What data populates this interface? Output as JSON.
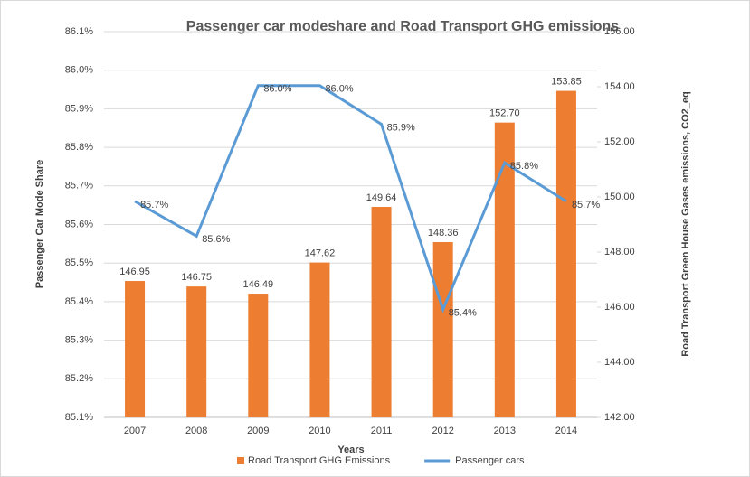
{
  "chart_data": {
    "type": "bar_line",
    "title": "Passenger car modeshare and Road Transport GHG emissions",
    "xlabel": "Years",
    "ylabel": "Passenger Car  Mode Share",
    "y2label": "Road Transport Green House Gases  emissions, CO2_eq",
    "categories": [
      "2007",
      "2008",
      "2009",
      "2010",
      "2011",
      "2012",
      "2013",
      "2014"
    ],
    "series": [
      {
        "name": "Road Transport GHG Emissions",
        "color": "#ed7d31",
        "type": "bar",
        "axis": "y2",
        "values": [
          146.95,
          146.75,
          146.49,
          147.62,
          149.64,
          148.36,
          152.7,
          153.85
        ],
        "value_labels": [
          "146.95",
          "146.75",
          "146.49",
          "147.62",
          "149.64",
          "148.36",
          "152.70",
          "153.85"
        ]
      },
      {
        "name": "Passenger cars",
        "color": "#5b9bd5",
        "type": "line",
        "axis": "y",
        "values": [
          85.66,
          85.57,
          85.96,
          85.96,
          85.86,
          85.38,
          85.76,
          85.66
        ],
        "value_labels": [
          "85.7%",
          "85.6%",
          "86.0%",
          "86.0%",
          "85.9%",
          "85.4%",
          "85.8%",
          "85.7%"
        ]
      }
    ],
    "ylim": [
      85.1,
      86.1
    ],
    "yticks": [
      {
        "value": 85.1,
        "label": "85.1%"
      },
      {
        "value": 85.2,
        "label": "85.2%"
      },
      {
        "value": 85.3,
        "label": "85.3%"
      },
      {
        "value": 85.4,
        "label": "85.4%"
      },
      {
        "value": 85.5,
        "label": "85.5%"
      },
      {
        "value": 85.6,
        "label": "85.6%"
      },
      {
        "value": 85.7,
        "label": "85.7%"
      },
      {
        "value": 85.8,
        "label": "85.8%"
      },
      {
        "value": 85.9,
        "label": "85.9%"
      },
      {
        "value": 86.0,
        "label": "86.0%"
      },
      {
        "value": 86.1,
        "label": "86.1%"
      }
    ],
    "y2lim": [
      142,
      156
    ],
    "y2ticks": [
      {
        "value": 142,
        "label": "142.00"
      },
      {
        "value": 144,
        "label": "144.00"
      },
      {
        "value": 146,
        "label": "146.00"
      },
      {
        "value": 148,
        "label": "148.00"
      },
      {
        "value": 150,
        "label": "150.00"
      },
      {
        "value": 152,
        "label": "152.00"
      },
      {
        "value": 154,
        "label": "154.00"
      },
      {
        "value": 156,
        "label": "156.00"
      }
    ],
    "grid": true,
    "legend": "bottom"
  }
}
